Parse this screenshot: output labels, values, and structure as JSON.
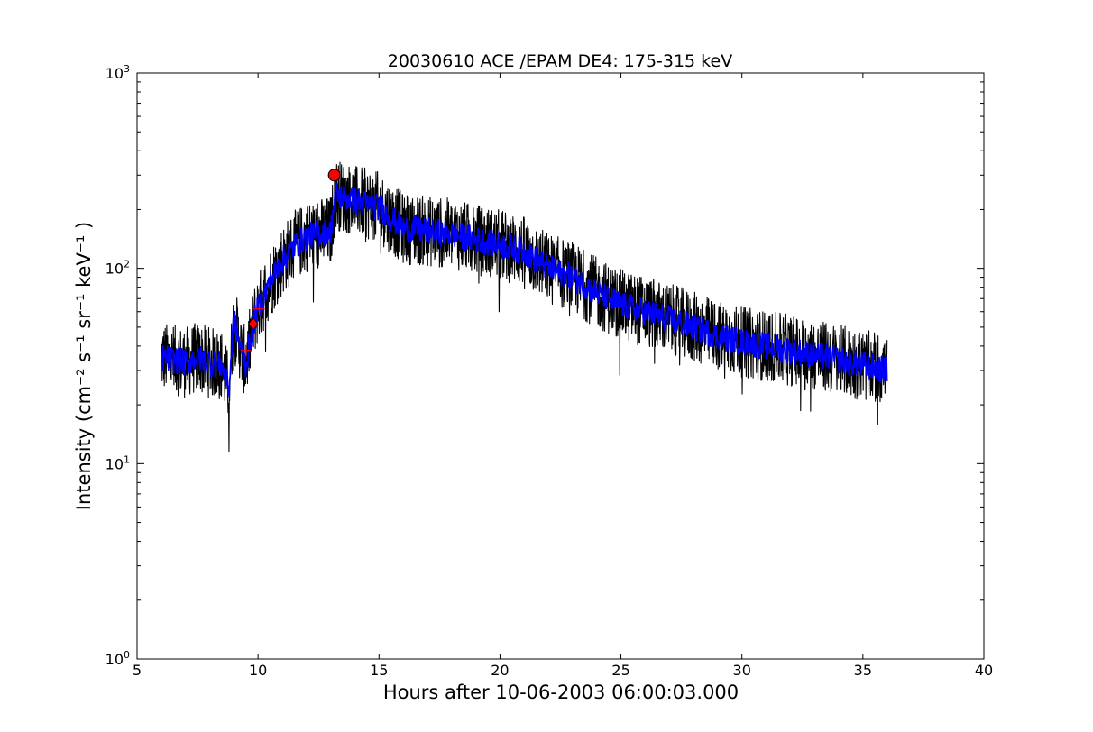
{
  "chart_data": {
    "type": "line",
    "title": "20030610 ACE /EPAM DE4: 175-315 keV",
    "xlabel": "Hours after 10-06-2003 06:00:03.000",
    "ylabel": "Intensity (cm⁻² s⁻¹ sr⁻¹ keV⁻¹ )",
    "xlim": [
      5,
      40
    ],
    "ylim": [
      1,
      1000
    ],
    "yscale": "log",
    "grid": false,
    "xticks": [
      5,
      10,
      15,
      20,
      25,
      30,
      35,
      40
    ],
    "xtick_labels": [
      "5",
      "10",
      "15",
      "20",
      "25",
      "30",
      "35",
      "40"
    ],
    "yticks": [
      1,
      10,
      100,
      1000
    ],
    "ytick_labels": [
      {
        "base": "10",
        "exp": "0"
      },
      {
        "base": "10",
        "exp": "1"
      },
      {
        "base": "10",
        "exp": "2"
      },
      {
        "base": "10",
        "exp": "3"
      }
    ],
    "series": [
      {
        "style": "raw",
        "color": "#000000",
        "x": [
          6.0,
          6.5,
          7.0,
          7.5,
          8.0,
          8.5,
          8.8,
          9.0,
          9.3,
          9.5,
          9.8,
          10.0,
          10.5,
          11.0,
          11.5,
          12.0,
          12.5,
          13.0,
          13.2,
          13.5,
          14.0,
          15.0,
          16.0,
          17.0,
          18.0,
          19.0,
          20.0,
          21.0,
          22.0,
          23.0,
          24.0,
          25.0,
          26.0,
          27.0,
          28.0,
          29.0,
          30.0,
          31.0,
          32.0,
          33.0,
          34.0,
          35.0,
          35.5,
          36.0
        ],
        "values": [
          35,
          34,
          33,
          35,
          33,
          32,
          24,
          55,
          38,
          32,
          52,
          62,
          85,
          110,
          130,
          145,
          150,
          155,
          240,
          232,
          222,
          205,
          160,
          155,
          150,
          140,
          132,
          122,
          100,
          90,
          75,
          65,
          60,
          55,
          50,
          45,
          42,
          40,
          38,
          36,
          34,
          32,
          31,
          30
        ]
      },
      {
        "style": "smoothed",
        "color": "#0000ff",
        "x": [
          6.0,
          6.5,
          7.0,
          7.5,
          8.0,
          8.5,
          8.8,
          9.0,
          9.3,
          9.5,
          9.8,
          10.0,
          10.5,
          11.0,
          11.5,
          12.0,
          12.5,
          13.0,
          13.2,
          13.5,
          14.0,
          15.0,
          16.0,
          17.0,
          18.0,
          19.0,
          20.0,
          21.0,
          22.0,
          23.0,
          24.0,
          25.0,
          26.0,
          27.0,
          28.0,
          29.0,
          30.0,
          31.0,
          32.0,
          33.0,
          34.0,
          35.0,
          35.5,
          36.0
        ],
        "values": [
          35,
          34,
          33,
          35,
          33,
          32,
          24,
          55,
          38,
          32,
          52,
          62,
          85,
          110,
          130,
          145,
          150,
          155,
          240,
          232,
          222,
          205,
          160,
          155,
          150,
          140,
          132,
          122,
          100,
          90,
          75,
          65,
          60,
          55,
          50,
          45,
          42,
          40,
          38,
          36,
          34,
          32,
          31,
          30
        ]
      }
    ],
    "markers": [
      {
        "shape": "circle",
        "x": 13.15,
        "y": 300,
        "color": "#ff0000"
      },
      {
        "shape": "diamond",
        "x": 9.8,
        "y": 52,
        "color": "#ff0000"
      },
      {
        "shape": "plus",
        "x": 9.5,
        "y": 38,
        "color": "#ff0000"
      },
      {
        "shape": "plus",
        "x": 10.05,
        "y": 62,
        "color": "#ff0000"
      }
    ]
  }
}
